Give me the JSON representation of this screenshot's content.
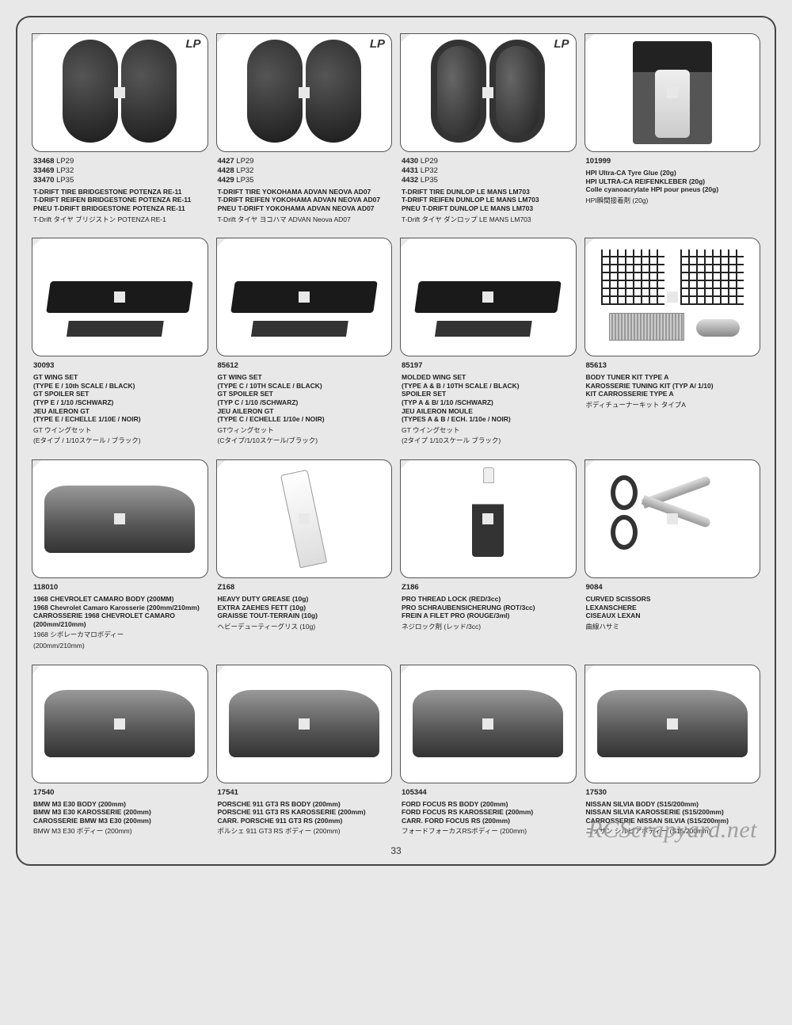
{
  "page_number": "33",
  "watermark": "RCScrapyard.net",
  "corner_badge": "LP",
  "cells": [
    {
      "codes": [
        [
          "33468",
          "LP29"
        ],
        [
          "33469",
          "LP32"
        ],
        [
          "33470",
          "LP35"
        ]
      ],
      "titles": [
        "T-DRIFT TIRE BRIDGESTONE POTENZA RE-11",
        "T-DRIFT REIFEN BRIDGESTONE POTENZA RE-11",
        "PNEU T-DRIFT BRIDGESTONE POTENZA RE-11"
      ],
      "reg": "T-Drift タイヤ ブリジストン POTENZA RE-1",
      "badge": true
    },
    {
      "codes": [
        [
          "4427",
          "LP29"
        ],
        [
          "4428",
          "LP32"
        ],
        [
          "4429",
          "LP35"
        ]
      ],
      "titles": [
        "T-DRIFT TIRE YOKOHAMA ADVAN NEOVA AD07",
        "T-DRIFT REIFEN YOKOHAMA ADVAN NEOVA AD07",
        "PNEU T-DRIFT YOKOHAMA ADVAN NEOVA AD07"
      ],
      "reg": "T-Drift タイヤ ヨコハマ ADVAN Neova AD07",
      "badge": true
    },
    {
      "codes": [
        [
          "4430",
          "LP29"
        ],
        [
          "4431",
          "LP32"
        ],
        [
          "4432",
          "LP35"
        ]
      ],
      "titles": [
        "T-DRIFT TIRE DUNLOP LE MANS LM703",
        "T-DRIFT REIFEN DUNLOP LE MANS LM703",
        "PNEU T-DRIFT DUNLOP LE MANS LM703"
      ],
      "reg": "T-Drift タイヤ ダンロップ LE MANS LM703",
      "badge": true
    },
    {
      "codes": [
        [
          "101999",
          ""
        ]
      ],
      "titles": [
        "HPI Ultra-CA Tyre Glue (20g)",
        "HPI ULTRA-CA REIFENKLEBER (20g)",
        "Colle cyanoacrylate HPI pour pneus (20g)"
      ],
      "reg": "HPI瞬間接着剤 (20g)"
    },
    {
      "codes": [
        [
          "30093",
          ""
        ]
      ],
      "titles": [
        "GT WING SET",
        "(TYPE E / 10th SCALE / BLACK)",
        "GT SPOILER SET",
        "(TYP E / 1/10 /SCHWARZ)",
        "JEU AILERON GT",
        "(TYPE E / ECHELLE 1/10E / NOIR)"
      ],
      "reg": "GT ウイングセット\n(Eタイプ / 1/10スケール / ブラック)"
    },
    {
      "codes": [
        [
          "85612",
          ""
        ]
      ],
      "titles": [
        "GT WING SET",
        "(TYPE C / 10TH SCALE / BLACK)",
        "GT SPOILER SET",
        "(TYP C / 1/10 /SCHWARZ)",
        "JEU AILERON GT",
        "(TYPE C / ECHELLE 1/10e / NOIR)"
      ],
      "reg": "GTウィングセット\n(Cタイプ/1/10スケール/ブラック)"
    },
    {
      "codes": [
        [
          "85197",
          ""
        ]
      ],
      "titles": [
        "MOLDED WING SET",
        "(TYPE A & B / 10TH SCALE / BLACK)",
        "SPOILER SET",
        "(TYP A & B/ 1/10 /SCHWARZ)",
        "JEU AILERON MOULE",
        "(TYPES A & B / ECH. 1/10e / NOIR)"
      ],
      "reg": "GT ウイングセット\n(2タイプ 1/10スケール ブラック)"
    },
    {
      "codes": [
        [
          "85613",
          ""
        ]
      ],
      "titles": [
        "BODY TUNER KIT TYPE A",
        "KAROSSERIE TUNING KIT (TYP A/ 1/10)",
        "KIT CARROSSERIE TYPE A"
      ],
      "reg": "ボディチューナーキット タイプA"
    },
    {
      "codes": [
        [
          "118010",
          ""
        ]
      ],
      "titles": [
        "1968 CHEVROLET CAMARO BODY (200MM)",
        "1968 Chevrolet Camaro Karosserie (200mm/210mm)",
        "CARROSSERIE 1968 CHEVROLET CAMARO (200mm/210mm)"
      ],
      "reg": "1968 シボレーカマロボディー \n(200mm/210mm)"
    },
    {
      "codes": [
        [
          "Z168",
          ""
        ]
      ],
      "titles": [
        "HEAVY DUTY GREASE (10g)",
        "EXTRA ZAEHES FETT (10g)",
        "GRAISSE TOUT-TERRAIN (10g)"
      ],
      "reg": "ヘビーデューティーグリス (10g)"
    },
    {
      "codes": [
        [
          "Z186",
          ""
        ]
      ],
      "titles": [
        "PRO THREAD LOCK (RED/3cc)",
        "PRO SCHRAUBENSICHERUNG (ROT/3cc)",
        "FREIN A FILET PRO (ROUGE/3ml)"
      ],
      "reg": "ネジロック剤 (レッド/3cc)"
    },
    {
      "codes": [
        [
          "9084",
          ""
        ]
      ],
      "titles": [
        "CURVED SCISSORS",
        "LEXANSCHERE",
        "CISEAUX LEXAN"
      ],
      "reg": "曲線ハサミ"
    },
    {
      "codes": [
        [
          "17540",
          ""
        ]
      ],
      "titles": [
        "BMW M3 E30 BODY (200mm)",
        "BMW M3 E30 KAROSSERIE (200mm)",
        "CAROSSERIE BMW M3 E30 (200mm)"
      ],
      "reg": "BMW M3 E30 ボディー  (200mm)"
    },
    {
      "codes": [
        [
          "17541",
          ""
        ]
      ],
      "titles": [
        "PORSCHE 911 GT3 RS BODY (200mm)",
        "PORSCHE 911 GT3 RS KAROSSERIE (200mm)",
        "CARR. PORSCHE 911 GT3 RS (200mm)"
      ],
      "reg": "ポルシェ 911 GT3 RS ボディー  (200mm)"
    },
    {
      "codes": [
        [
          "105344",
          ""
        ]
      ],
      "titles": [
        "FORD FOCUS RS BODY (200mm)",
        "FORD FOCUS RS KAROSSERIE (200mm)",
        "CARR. FORD FOCUS RS (200mm)"
      ],
      "reg": "フォードフォーカスRSボディー  (200mm)"
    },
    {
      "codes": [
        [
          "17530",
          ""
        ]
      ],
      "titles": [
        "NISSAN SILVIA BODY (S15/200mm)",
        "NISSAN SILVIA KAROSSERIE (S15/200mm)",
        "CARROSSERIE NISSAN SILVIA (S15/200mm)"
      ],
      "reg": "ニッサン シルビアボディー  (S15/200mm)"
    }
  ],
  "img_kinds": [
    "tires",
    "tires",
    "tires2",
    "glue",
    "wing",
    "wing",
    "wing",
    "tuner",
    "car",
    "tube",
    "bottle",
    "scissors",
    "car",
    "car",
    "car",
    "car"
  ]
}
